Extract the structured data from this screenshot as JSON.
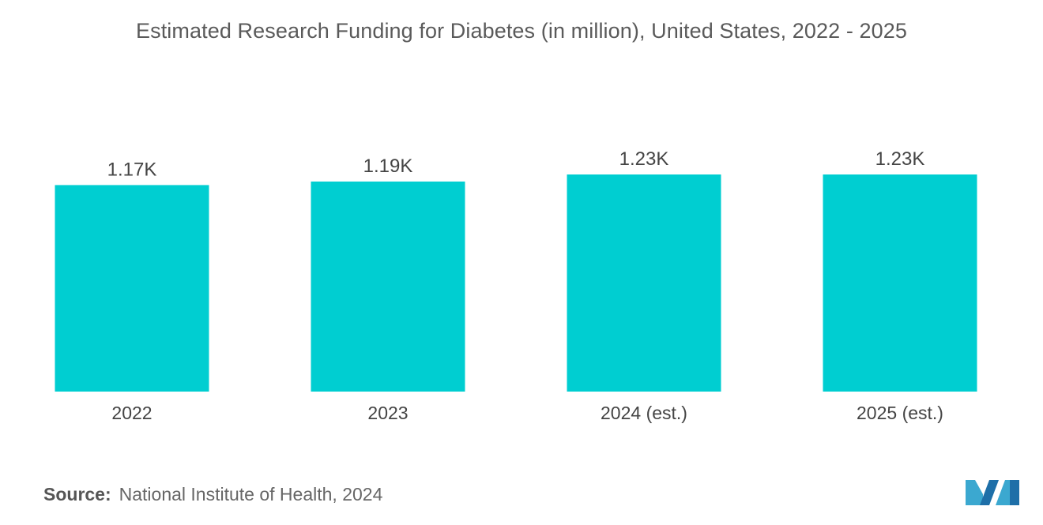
{
  "chart_data": {
    "type": "bar",
    "title": "Estimated Research Funding for Diabetes (in million), United States, 2022 - 2025",
    "categories": [
      "2022",
      "2023",
      "2024 (est.)",
      "2025 (est.)"
    ],
    "values": [
      1170,
      1190,
      1230,
      1230
    ],
    "value_labels": [
      "1.17K",
      "1.19K",
      "1.23K",
      "1.23K"
    ],
    "xlabel": "",
    "ylabel": "",
    "ylim": [
      0,
      1230
    ],
    "grid": false,
    "legend": "none",
    "bar_color": "#00CED1"
  },
  "source": {
    "label": "Source:",
    "text": "National Institute of Health, 2024"
  },
  "logo": {
    "icon": "mordor-intelligence-logo-icon",
    "colors": [
      "#3BA8D0",
      "#1E6FA8"
    ]
  }
}
